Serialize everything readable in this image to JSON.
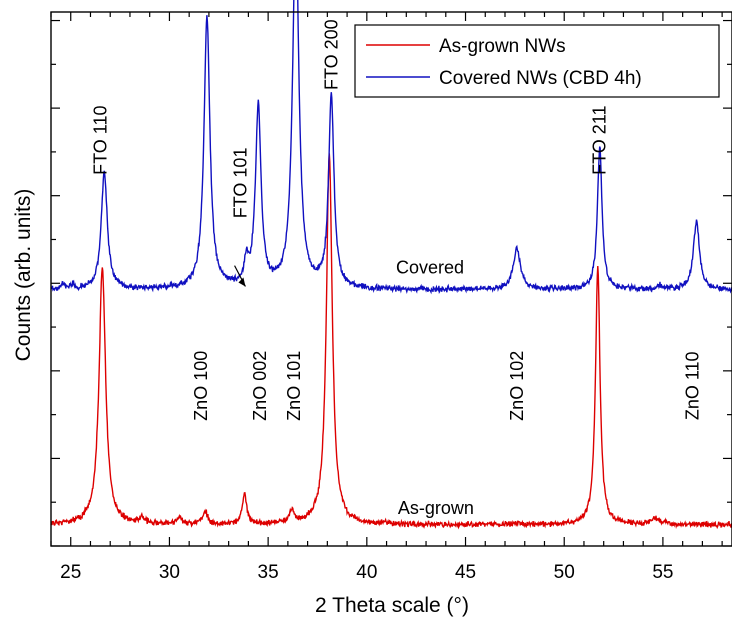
{
  "chart_data": {
    "type": "line",
    "xlabel": "2 Theta scale (°)",
    "ylabel": "Counts (arb. units)",
    "xlim": [
      24,
      58.5
    ],
    "ylim": [
      0,
      100
    ],
    "x_ticks": [
      25,
      30,
      35,
      40,
      45,
      50,
      55
    ],
    "y_tick_labels_shown": false,
    "legend_position": "top-right",
    "series": [
      {
        "name": "As-grown NWs",
        "color": "#dd0000",
        "baseline": 4,
        "peaks": [
          {
            "x": 26.6,
            "height": 48,
            "width": 0.2
          },
          {
            "x": 28.6,
            "height": 1.2,
            "width": 0.15
          },
          {
            "x": 30.5,
            "height": 1.2,
            "width": 0.15
          },
          {
            "x": 31.8,
            "height": 2.5,
            "width": 0.15
          },
          {
            "x": 33.8,
            "height": 5.5,
            "width": 0.14
          },
          {
            "x": 36.2,
            "height": 2.3,
            "width": 0.15
          },
          {
            "x": 38.1,
            "height": 69,
            "width": 0.18
          },
          {
            "x": 51.7,
            "height": 48,
            "width": 0.14
          },
          {
            "x": 54.6,
            "height": 1.0,
            "width": 0.3
          }
        ]
      },
      {
        "name": "Covered NWs (CBD 4h)",
        "color": "#1010c0",
        "baseline": 48,
        "peaks": [
          {
            "x": 24.6,
            "height": 1.0,
            "width": 0.12
          },
          {
            "x": 25.1,
            "height": 0.8,
            "width": 0.1
          },
          {
            "x": 26.7,
            "height": 22,
            "width": 0.18
          },
          {
            "x": 31.9,
            "height": 51,
            "width": 0.18
          },
          {
            "x": 33.9,
            "height": 4,
            "width": 0.14
          },
          {
            "x": 34.5,
            "height": 34,
            "width": 0.17
          },
          {
            "x": 36.4,
            "height": 69,
            "width": 0.19
          },
          {
            "x": 38.2,
            "height": 36,
            "width": 0.16
          },
          {
            "x": 47.6,
            "height": 7.5,
            "width": 0.22
          },
          {
            "x": 51.8,
            "height": 27,
            "width": 0.14
          },
          {
            "x": 54.8,
            "height": 0.8,
            "width": 0.15
          },
          {
            "x": 56.7,
            "height": 13,
            "width": 0.18
          }
        ]
      }
    ],
    "annotations": [
      {
        "id": "fto110",
        "text": "FTO 110",
        "x": 26.5,
        "y": 76
      },
      {
        "id": "fto101",
        "text": "FTO 101",
        "x": 33.6,
        "y": 68
      },
      {
        "id": "fto200",
        "text": "FTO 200",
        "x": 38.2,
        "y": 92
      },
      {
        "id": "fto211",
        "text": "FTO 211",
        "x": 51.8,
        "y": 76
      },
      {
        "id": "zno100",
        "text": "ZnO 100",
        "x": 31.6,
        "y": 30
      },
      {
        "id": "zno002",
        "text": "ZnO 002",
        "x": 34.6,
        "y": 30
      },
      {
        "id": "zno101",
        "text": "ZnO 101",
        "x": 36.3,
        "y": 30
      },
      {
        "id": "zno102",
        "text": "ZnO 102",
        "x": 47.6,
        "y": 30
      },
      {
        "id": "zno110",
        "text": "ZnO 110",
        "x": 56.5,
        "y": 30
      },
      {
        "id": "covered",
        "text": "Covered",
        "x": 43.2,
        "y": 51
      },
      {
        "id": "asgrown",
        "text": "As-grown",
        "x": 43.5,
        "y": 6
      }
    ]
  }
}
